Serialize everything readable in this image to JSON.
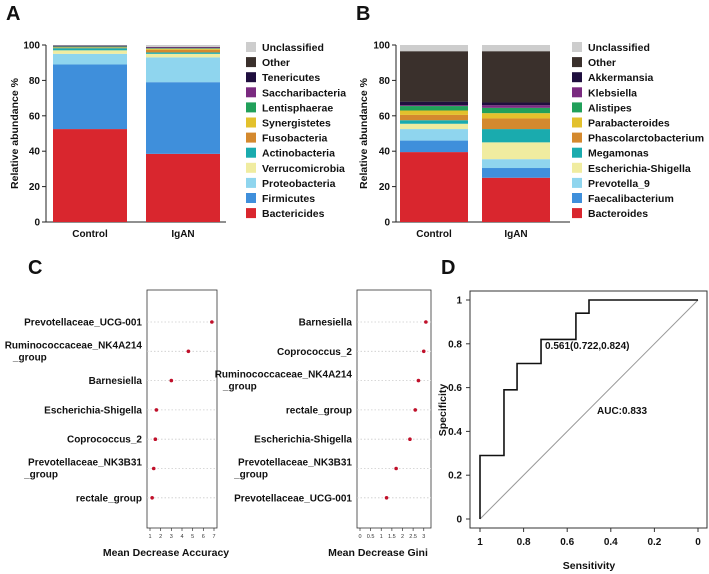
{
  "panels": {
    "a": "A",
    "b": "B",
    "c": "C",
    "d": "D"
  },
  "chart_data": [
    {
      "id": "A",
      "type": "bar",
      "stacked": true,
      "ylabel": "Relative abundance %",
      "ylim": [
        0,
        100
      ],
      "yticks": [
        0,
        20,
        40,
        60,
        80,
        100
      ],
      "categories": [
        "Control",
        "IgAN"
      ],
      "series": [
        {
          "name": "Bactericides",
          "color": "#d9262e",
          "values": [
            52.5,
            38.5
          ]
        },
        {
          "name": "Firmicutes",
          "color": "#3f8fdb",
          "values": [
            36.5,
            40.5
          ]
        },
        {
          "name": "Proteobacteria",
          "color": "#8fd5ee",
          "values": [
            6.0,
            14.0
          ]
        },
        {
          "name": "Verrucomicrobia",
          "color": "#f0eca0",
          "values": [
            2.0,
            2.0
          ]
        },
        {
          "name": "Actinobacteria",
          "color": "#1aabae",
          "values": [
            1.2,
            0.8
          ]
        },
        {
          "name": "Fusobacteria",
          "color": "#d4892e",
          "values": [
            0.3,
            1.5
          ]
        },
        {
          "name": "Synergistetes",
          "color": "#e3c12c",
          "values": [
            0.2,
            0.6
          ]
        },
        {
          "name": "Lentisphaerae",
          "color": "#21a05a",
          "values": [
            0.5,
            0.3
          ]
        },
        {
          "name": "Saccharibacteria",
          "color": "#7a2a80",
          "values": [
            0.3,
            0.4
          ]
        },
        {
          "name": "Tenericutes",
          "color": "#1f0e3e",
          "values": [
            0.2,
            0.2
          ]
        },
        {
          "name": "Other",
          "color": "#3a302c",
          "values": [
            0.1,
            0.1
          ]
        },
        {
          "name": "Unclassified",
          "color": "#cdcdcd",
          "values": [
            0.2,
            1.1
          ]
        }
      ]
    },
    {
      "id": "B",
      "type": "bar",
      "stacked": true,
      "ylabel": "Relative abundance %",
      "ylim": [
        0,
        100
      ],
      "yticks": [
        0,
        20,
        40,
        60,
        80,
        100
      ],
      "categories": [
        "Control",
        "IgAN"
      ],
      "series": [
        {
          "name": "Bacteroides",
          "color": "#d9262e",
          "values": [
            39.5,
            25.0
          ]
        },
        {
          "name": "Faecalibacterium",
          "color": "#3f8fdb",
          "values": [
            6.5,
            5.5
          ]
        },
        {
          "name": "Prevotella_9",
          "color": "#8fd5ee",
          "values": [
            6.5,
            5.0
          ]
        },
        {
          "name": "Escherichia-Shigella",
          "color": "#f0eca0",
          "values": [
            3.0,
            9.5
          ]
        },
        {
          "name": "Megamonas",
          "color": "#1aabae",
          "values": [
            2.0,
            7.5
          ]
        },
        {
          "name": "Phascolarctobacterium",
          "color": "#d4892e",
          "values": [
            3.0,
            6.0
          ]
        },
        {
          "name": "Parabacteroides",
          "color": "#e3c12c",
          "values": [
            2.5,
            3.0
          ]
        },
        {
          "name": "Alistipes",
          "color": "#21a05a",
          "values": [
            2.5,
            3.0
          ]
        },
        {
          "name": "Klebsiella",
          "color": "#7a2a80",
          "values": [
            0.5,
            1.5
          ]
        },
        {
          "name": "Akkermansia",
          "color": "#1f0e3e",
          "values": [
            2.0,
            1.5
          ]
        },
        {
          "name": "Other",
          "color": "#3a302c",
          "values": [
            28.5,
            29.0
          ]
        },
        {
          "name": "Unclassified",
          "color": "#cdcdcd",
          "values": [
            3.5,
            3.5
          ]
        }
      ]
    },
    {
      "id": "C1",
      "type": "scatter",
      "xlabel": "Mean Decrease Accuracy",
      "xticks": [
        1,
        2,
        3,
        4,
        5,
        6,
        7
      ],
      "xlim": [
        1,
        7
      ],
      "categories": [
        "Prevotellaceae_UCG-001",
        "Ruminococcaceae_NK4A214 _group",
        "Barnesiella",
        "Escherichia-Shigella",
        "Coprococcus_2",
        "Prevotellaceae_NK3B31 _group",
        "rectale_group"
      ],
      "values": [
        6.8,
        4.6,
        3.0,
        1.6,
        1.5,
        1.35,
        1.2
      ]
    },
    {
      "id": "C2",
      "type": "scatter",
      "xlabel": "Mean Decrease Gini",
      "xticks": [
        0.0,
        0.5,
        1.0,
        1.5,
        2.0,
        2.5,
        3.0
      ],
      "xlim": [
        0,
        3.2
      ],
      "categories": [
        "Barnesiella",
        "Coprococcus_2",
        "Ruminococcaceae_NK4A214 _group",
        "rectale_group",
        "Escherichia-Shigella",
        "Prevotellaceae_NK3B31 _group",
        "Prevotellaceae_UCG-001"
      ],
      "values": [
        3.1,
        3.0,
        2.75,
        2.6,
        2.35,
        1.7,
        1.25
      ]
    },
    {
      "id": "D",
      "type": "line",
      "title": "",
      "xlabel": "Sensitivity",
      "ylabel": "Specificity",
      "xlim": [
        1.0,
        0.0
      ],
      "ylim": [
        0.0,
        1.0
      ],
      "xticks": [
        1.0,
        0.8,
        0.6,
        0.4,
        0.2,
        0.0
      ],
      "yticks": [
        0.0,
        0.2,
        0.4,
        0.6,
        0.8,
        1.0
      ],
      "roc_x": [
        1.0,
        1.0,
        0.89,
        0.89,
        0.83,
        0.83,
        0.72,
        0.72,
        0.56,
        0.56,
        0.5,
        0.5,
        0.0
      ],
      "roc_y": [
        0.0,
        0.29,
        0.29,
        0.59,
        0.59,
        0.71,
        0.71,
        0.82,
        0.82,
        0.94,
        0.94,
        1.0,
        1.0
      ],
      "annotations": {
        "threshold": "0.561(0.722,0.824)",
        "auc": "AUC:0.833"
      }
    }
  ]
}
